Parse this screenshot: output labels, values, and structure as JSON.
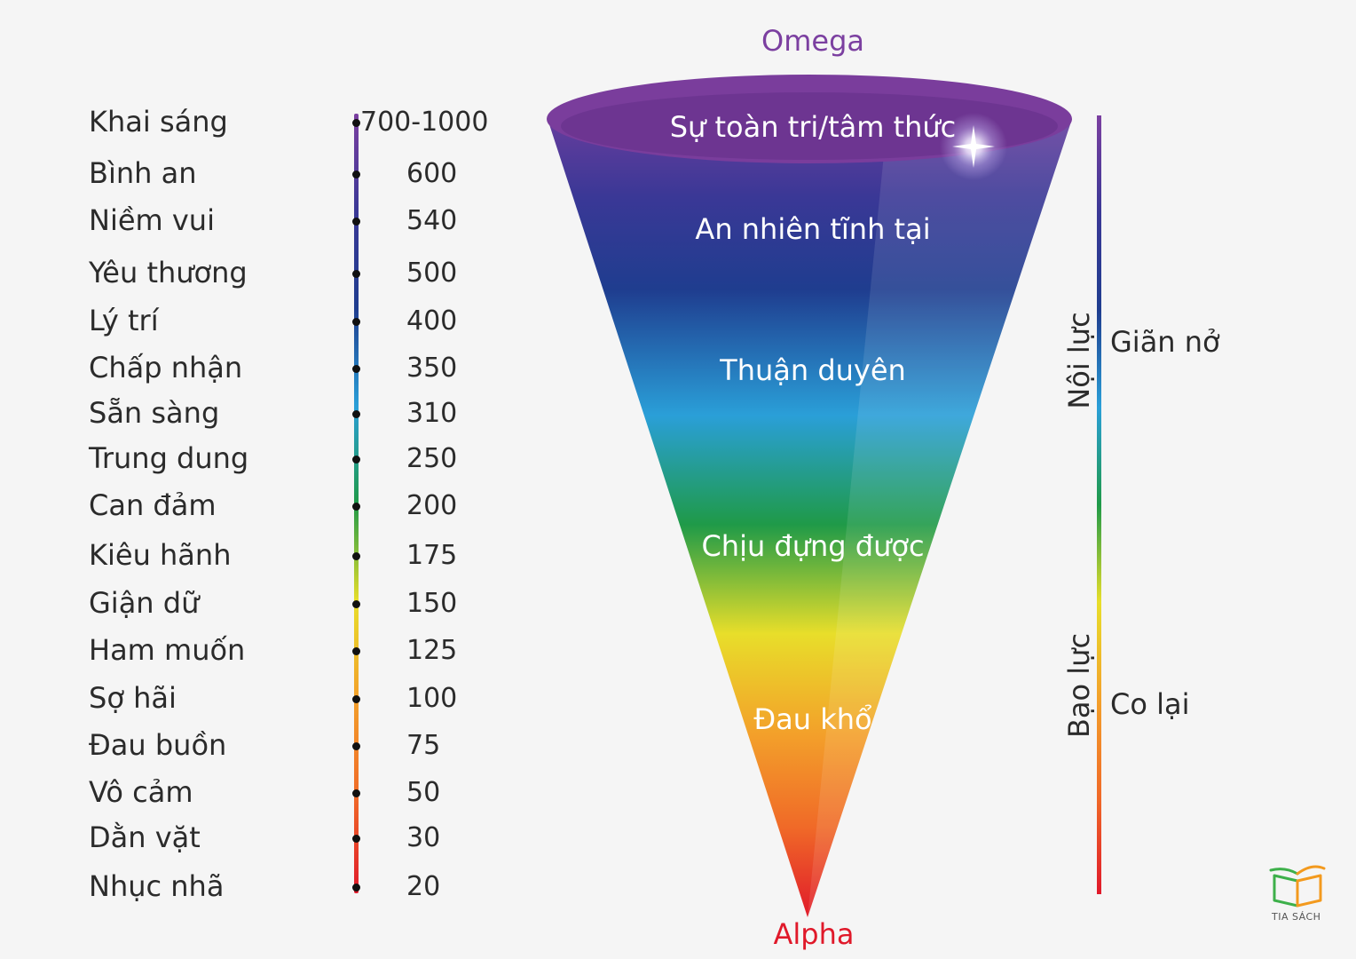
{
  "diagram": {
    "top_label": "Omega",
    "bottom_label": "Alpha",
    "top_label_color": "#7b3fa0",
    "bottom_label_color": "#e0192a",
    "levels": [
      {
        "label": "Khai sáng",
        "value": "700-1000"
      },
      {
        "label": "Bình an",
        "value": "600"
      },
      {
        "label": "Niềm vui",
        "value": "540"
      },
      {
        "label": "Yêu thương",
        "value": "500"
      },
      {
        "label": "Lý trí",
        "value": "400"
      },
      {
        "label": "Chấp nhận",
        "value": "350"
      },
      {
        "label": "Sẵn sàng",
        "value": "310"
      },
      {
        "label": "Trung dung",
        "value": "250"
      },
      {
        "label": "Can đảm",
        "value": "200"
      },
      {
        "label": "Kiêu hãnh",
        "value": "175"
      },
      {
        "label": "Giận dữ",
        "value": "150"
      },
      {
        "label": "Ham muốn",
        "value": "125"
      },
      {
        "label": "Sợ hãi",
        "value": "100"
      },
      {
        "label": "Đau buồn",
        "value": "75"
      },
      {
        "label": "Vô cảm",
        "value": "50"
      },
      {
        "label": "Dằn vặt",
        "value": "30"
      },
      {
        "label": "Nhục nhã",
        "value": "20"
      }
    ],
    "cone_stages": [
      "Sự toàn tri/tâm thức",
      "An nhiên tĩnh tại",
      "Thuận duyên",
      "Chịu đựng được",
      "Đau khổ"
    ],
    "right_scale": {
      "upper_vertical": "Nội lực",
      "upper_side": "Giãn nở",
      "lower_vertical": "Bạo lực",
      "lower_side": "Co lại"
    },
    "spectrum_colors": [
      "#7b3fa0",
      "#3a3896",
      "#1f3d8f",
      "#2a9fd8",
      "#1f9a48",
      "#e8de2a",
      "#f3a02a",
      "#f06a28",
      "#e0192a"
    ]
  },
  "logo": {
    "text": "TIA SÁCH",
    "colors": [
      "#3db04a",
      "#f39a1e"
    ]
  }
}
